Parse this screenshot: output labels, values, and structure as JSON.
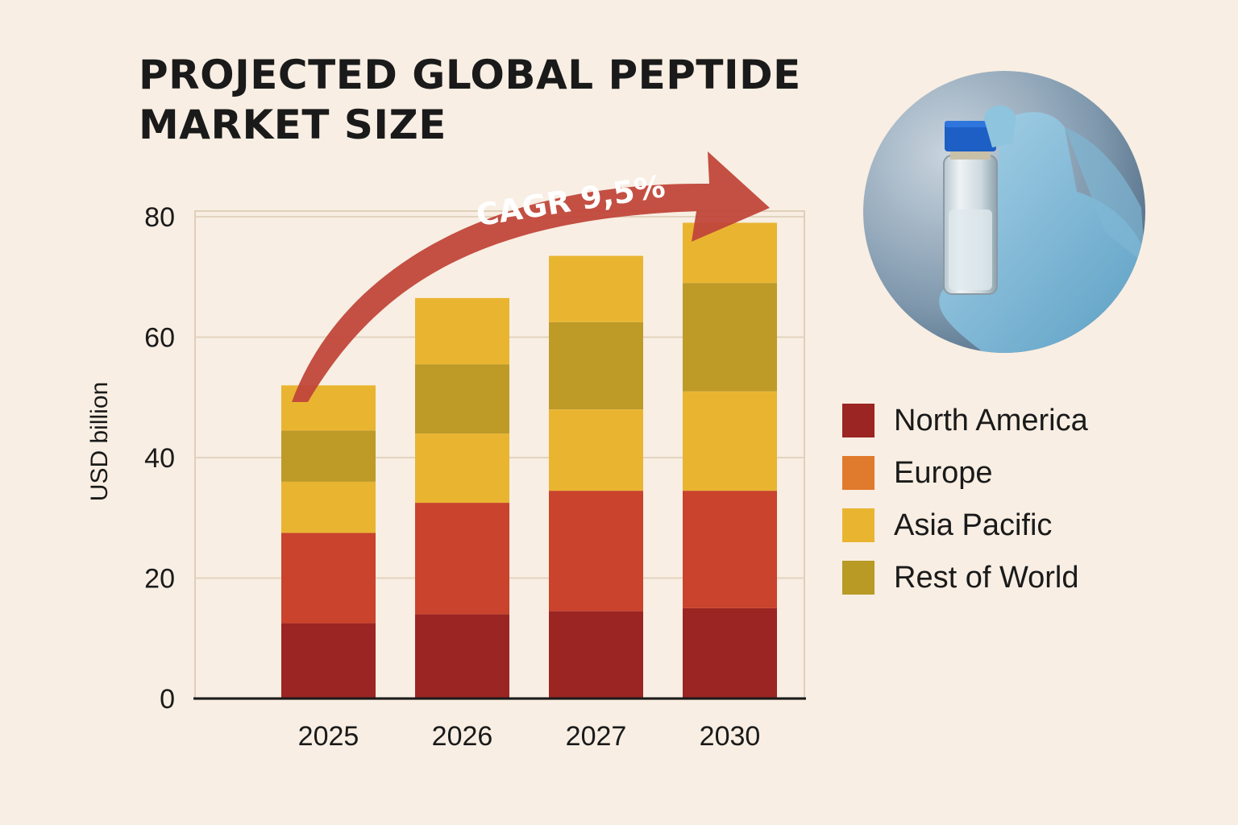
{
  "title_lines": [
    "PROJECTED GLOBAL PEPTIDE",
    "MARKET SIZE"
  ],
  "chart_data": {
    "type": "bar",
    "stacked": true,
    "title": "PROJECTED GLOBAL PEPTIDE MARKET SIZE",
    "xlabel": "",
    "ylabel": "USD billion",
    "ylim": [
      0,
      80
    ],
    "yticks": [
      "0",
      "20",
      "40",
      "60",
      "80"
    ],
    "grid": true,
    "legend_position": "right",
    "categories": [
      "2025",
      "2026",
      "2027",
      "2030"
    ],
    "series": [
      {
        "name": "North America",
        "color": "#9b2522",
        "values": [
          12.5,
          14,
          14.5,
          15
        ]
      },
      {
        "name": "Europe",
        "color": "#c9432d",
        "values": [
          15,
          18.5,
          20,
          19.5
        ]
      },
      {
        "name": "Asia Pacific",
        "color": "#e9b531",
        "values": [
          8.5,
          11.5,
          13.5,
          16.5
        ]
      },
      {
        "name": "Rest of World",
        "color": "#be9a27",
        "values": [
          8.5,
          11.5,
          14.5,
          18
        ]
      },
      {
        "name": "",
        "color": "#e9b531",
        "values": [
          7.5,
          11,
          11,
          10
        ]
      }
    ],
    "annotation": "CAGR 9,5%"
  },
  "legend": [
    {
      "label": "North America",
      "color": "#9b2522"
    },
    {
      "label": "Europe",
      "color": "#e07a2c"
    },
    {
      "label": "Asia Pacific",
      "color": "#e9b531"
    },
    {
      "label": "Rest of World",
      "color": "#b89a25"
    }
  ],
  "photo": {
    "subject": "gloved hand holding clear vial with blue cap"
  }
}
